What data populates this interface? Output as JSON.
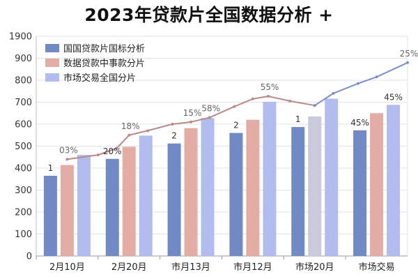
{
  "chart_data": {
    "type": "bar",
    "title": "2023年贷款片全国数据分析 +",
    "categories": [
      "2月10月",
      "2月20月",
      "市月13月",
      "市月12月",
      "市场20月",
      "市场交易"
    ],
    "ylim": [
      0,
      1900
    ],
    "yticks": [
      0,
      100,
      200,
      300,
      400,
      500,
      600,
      700,
      800,
      900,
      1900
    ],
    "grid": true,
    "legend_position": "top-left",
    "series": [
      {
        "name": "国国贷款片国标分析",
        "color": "#7189c4",
        "values": [
          365,
          442,
          512,
          560,
          587,
          572
        ],
        "labels": [
          "1",
          "20%",
          "2",
          "2",
          "1",
          "45%"
        ]
      },
      {
        "name": "数据贷款中事款分片",
        "color": "#e3ada6",
        "values": [
          414,
          497,
          582,
          620,
          635,
          650
        ],
        "bar_colors": [
          "#e3ada6",
          "#e3ada6",
          "#e3ada6",
          "#e3ada6",
          "#c9cadb",
          "#e3ada6"
        ],
        "labels": [
          "",
          "",
          "",
          "",
          "",
          ""
        ]
      },
      {
        "name": "市场交易全国分片",
        "color": "#b3bcef",
        "values": [
          460,
          548,
          628,
          702,
          716,
          688
        ],
        "labels": [
          "",
          "",
          "",
          "",
          "",
          "45%"
        ]
      }
    ],
    "lines": [
      {
        "color": "#b88a88",
        "points": [
          [
            0.0,
            440
          ],
          [
            0.5,
            460
          ],
          [
            0.8,
            490
          ],
          [
            1.0,
            550
          ],
          [
            1.3,
            570
          ],
          [
            1.7,
            600
          ],
          [
            2.0,
            610
          ],
          [
            2.3,
            630
          ],
          [
            2.7,
            680
          ],
          [
            3.0,
            715
          ],
          [
            3.25,
            727
          ],
          [
            3.6,
            705
          ],
          [
            4.0,
            685
          ]
        ],
        "labels": [
          {
            "x": 0.0,
            "y": 440,
            "text": "03%"
          },
          {
            "x": 1.0,
            "y": 550,
            "text": "18%"
          },
          {
            "x": 2.0,
            "y": 610,
            "text": "15%"
          },
          {
            "x": 2.3,
            "y": 630,
            "text": "58%"
          },
          {
            "x": 3.25,
            "y": 727,
            "text": "55%"
          }
        ]
      },
      {
        "color": "#7b8fcb",
        "points": [
          [
            4.0,
            685
          ],
          [
            4.3,
            740
          ],
          [
            4.7,
            785
          ],
          [
            5.0,
            815
          ],
          [
            5.5,
            880
          ]
        ],
        "labels": [
          {
            "x": 5.5,
            "y": 880,
            "text": "25%"
          }
        ]
      }
    ]
  }
}
